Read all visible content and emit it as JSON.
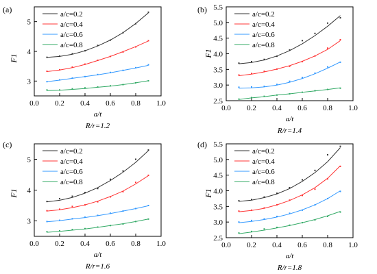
{
  "chart_data": [
    {
      "type": "line",
      "panel_label": "(a)",
      "caption": "R/r=1.2",
      "xlabel": "a/t",
      "ylabel": "F1",
      "xlim": [
        0.0,
        1.0
      ],
      "ylim": [
        2.5,
        5.5
      ],
      "xticks": [
        "0.0",
        "0.2",
        "0.4",
        "0.6",
        "0.8",
        "1.0"
      ],
      "yticks": [
        "3",
        "4",
        "5"
      ],
      "ytick_values": [
        3,
        4,
        5
      ],
      "legend_position": "top-left",
      "x": [
        0.1,
        0.2,
        0.3,
        0.4,
        0.5,
        0.6,
        0.7,
        0.8,
        0.9
      ],
      "series": [
        {
          "name": "a/c=0.2",
          "color": "#333333",
          "points": [
            3.8,
            3.84,
            3.92,
            4.02,
            4.2,
            4.38,
            4.63,
            4.93,
            5.32
          ],
          "fit": [
            3.8,
            3.83,
            3.9,
            4.02,
            4.18,
            4.38,
            4.63,
            4.94,
            5.3
          ]
        },
        {
          "name": "a/c=0.4",
          "color": "#ff3333",
          "points": [
            3.33,
            3.38,
            3.47,
            3.57,
            3.7,
            3.83,
            3.98,
            4.15,
            4.36
          ],
          "fit": [
            3.32,
            3.37,
            3.45,
            3.56,
            3.69,
            3.83,
            3.99,
            4.16,
            4.35
          ]
        },
        {
          "name": "a/c=0.6",
          "color": "#3399ff",
          "points": [
            2.98,
            3.04,
            3.1,
            3.15,
            3.22,
            3.29,
            3.36,
            3.45,
            3.55
          ],
          "fit": [
            2.98,
            3.03,
            3.09,
            3.15,
            3.21,
            3.28,
            3.36,
            3.44,
            3.53
          ]
        },
        {
          "name": "a/c=0.8",
          "color": "#33aa66",
          "points": [
            2.7,
            2.7,
            2.74,
            2.77,
            2.8,
            2.84,
            2.88,
            2.94,
            3.01
          ],
          "fit": [
            2.68,
            2.69,
            2.72,
            2.75,
            2.79,
            2.83,
            2.88,
            2.94,
            3.01
          ]
        }
      ]
    },
    {
      "type": "line",
      "panel_label": "(b)",
      "caption": "R/r=1.4",
      "xlabel": "a/t",
      "ylabel": "F1",
      "xlim": [
        0.0,
        1.0
      ],
      "ylim": [
        2.5,
        5.5
      ],
      "xticks": [
        "0.0",
        "0.2",
        "0.4",
        "0.6",
        "0.8",
        "1.0"
      ],
      "yticks": [
        "2.5",
        "3.0",
        "3.5",
        "4.0",
        "4.5",
        "5.0",
        "5.5"
      ],
      "ytick_values": [
        2.5,
        3.0,
        3.5,
        4.0,
        4.5,
        5.0,
        5.5
      ],
      "legend_position": "top-left",
      "x": [
        0.1,
        0.2,
        0.3,
        0.4,
        0.5,
        0.6,
        0.7,
        0.8,
        0.9
      ],
      "series": [
        {
          "name": "a/c=0.2",
          "color": "#333333",
          "points": [
            3.7,
            3.75,
            3.82,
            3.92,
            4.12,
            4.42,
            4.65,
            4.98,
            5.15
          ],
          "fit": [
            3.68,
            3.72,
            3.8,
            3.93,
            4.1,
            4.32,
            4.58,
            4.88,
            5.22
          ]
        },
        {
          "name": "a/c=0.4",
          "color": "#ff3333",
          "points": [
            3.32,
            3.37,
            3.44,
            3.51,
            3.6,
            3.75,
            3.93,
            4.18,
            4.45
          ],
          "fit": [
            3.3,
            3.35,
            3.42,
            3.51,
            3.62,
            3.76,
            3.93,
            4.14,
            4.42
          ]
        },
        {
          "name": "a/c=0.6",
          "color": "#3399ff",
          "points": [
            2.93,
            2.94,
            2.96,
            3.02,
            3.12,
            3.24,
            3.38,
            3.58,
            3.73
          ],
          "fit": [
            2.9,
            2.91,
            2.94,
            3.0,
            3.09,
            3.21,
            3.36,
            3.54,
            3.74
          ]
        },
        {
          "name": "a/c=0.8",
          "color": "#33aa66",
          "points": [
            2.55,
            2.6,
            2.64,
            2.68,
            2.72,
            2.77,
            2.82,
            2.86,
            2.9
          ],
          "fit": [
            2.54,
            2.59,
            2.63,
            2.68,
            2.72,
            2.77,
            2.81,
            2.86,
            2.91
          ]
        }
      ]
    },
    {
      "type": "line",
      "panel_label": "(c)",
      "caption": "R/r=1.6",
      "xlabel": "a/t",
      "ylabel": "F1",
      "xlim": [
        0.0,
        1.0
      ],
      "ylim": [
        2.5,
        5.5
      ],
      "xticks": [
        "0.0",
        "0.2",
        "0.4",
        "0.6",
        "0.8",
        "1.0"
      ],
      "yticks": [
        "3",
        "4",
        "5"
      ],
      "ytick_values": [
        3,
        4,
        5
      ],
      "legend_position": "top-left",
      "x": [
        0.1,
        0.2,
        0.3,
        0.4,
        0.5,
        0.6,
        0.7,
        0.8,
        0.9
      ],
      "series": [
        {
          "name": "a/c=0.2",
          "color": "#333333",
          "points": [
            3.63,
            3.72,
            3.8,
            3.92,
            4.05,
            4.35,
            4.62,
            5.0,
            5.3
          ],
          "fit": [
            3.62,
            3.67,
            3.76,
            3.9,
            4.08,
            4.31,
            4.58,
            4.9,
            5.28
          ]
        },
        {
          "name": "a/c=0.4",
          "color": "#ff3333",
          "points": [
            3.33,
            3.38,
            3.47,
            3.52,
            3.62,
            3.78,
            3.95,
            4.25,
            4.48
          ],
          "fit": [
            3.32,
            3.36,
            3.43,
            3.52,
            3.64,
            3.79,
            3.97,
            4.2,
            4.47
          ]
        },
        {
          "name": "a/c=0.6",
          "color": "#3399ff",
          "points": [
            2.98,
            3.02,
            3.07,
            3.12,
            3.18,
            3.25,
            3.32,
            3.4,
            3.5
          ],
          "fit": [
            2.97,
            3.01,
            3.06,
            3.11,
            3.17,
            3.24,
            3.32,
            3.4,
            3.49
          ]
        },
        {
          "name": "a/c=0.8",
          "color": "#33aa66",
          "points": [
            2.65,
            2.68,
            2.72,
            2.75,
            2.8,
            2.85,
            2.9,
            2.98,
            3.06
          ],
          "fit": [
            2.63,
            2.66,
            2.7,
            2.74,
            2.79,
            2.85,
            2.91,
            2.98,
            3.06
          ]
        }
      ]
    },
    {
      "type": "line",
      "panel_label": "(d)",
      "caption": "R/r=1.8",
      "xlabel": "a/t",
      "ylabel": "F1",
      "xlim": [
        0.0,
        1.0
      ],
      "ylim": [
        2.5,
        5.5
      ],
      "xticks": [
        "0.0",
        "0.2",
        "0.4",
        "0.6",
        "0.8",
        "1.0"
      ],
      "yticks": [
        "2.5",
        "3.0",
        "3.5",
        "4.0",
        "4.5",
        "5.0",
        "5.5"
      ],
      "ytick_values": [
        2.5,
        3.0,
        3.5,
        4.0,
        4.5,
        5.0,
        5.5
      ],
      "legend_position": "top-left",
      "x": [
        0.1,
        0.2,
        0.3,
        0.4,
        0.5,
        0.6,
        0.7,
        0.8,
        0.9
      ],
      "series": [
        {
          "name": "a/c=0.2",
          "color": "#333333",
          "points": [
            3.68,
            3.72,
            3.8,
            3.92,
            4.1,
            4.35,
            4.65,
            5.15,
            5.42
          ],
          "fit": [
            3.66,
            3.7,
            3.78,
            3.9,
            4.07,
            4.3,
            4.58,
            4.93,
            5.38
          ]
        },
        {
          "name": "a/c=0.4",
          "color": "#ff3333",
          "points": [
            3.35,
            3.38,
            3.45,
            3.55,
            3.7,
            3.85,
            4.05,
            4.38,
            4.78
          ],
          "fit": [
            3.33,
            3.37,
            3.44,
            3.55,
            3.69,
            3.87,
            4.1,
            4.4,
            4.8
          ]
        },
        {
          "name": "a/c=0.6",
          "color": "#3399ff",
          "points": [
            3.0,
            3.05,
            3.1,
            3.18,
            3.28,
            3.38,
            3.55,
            3.75,
            3.98
          ],
          "fit": [
            2.98,
            3.02,
            3.08,
            3.16,
            3.26,
            3.39,
            3.55,
            3.75,
            4.0
          ]
        },
        {
          "name": "a/c=0.8",
          "color": "#33aa66",
          "points": [
            2.65,
            2.7,
            2.78,
            2.83,
            2.9,
            2.98,
            3.07,
            3.18,
            3.32
          ],
          "fit": [
            2.63,
            2.68,
            2.74,
            2.81,
            2.89,
            2.98,
            3.08,
            3.2,
            3.34
          ]
        }
      ]
    }
  ]
}
